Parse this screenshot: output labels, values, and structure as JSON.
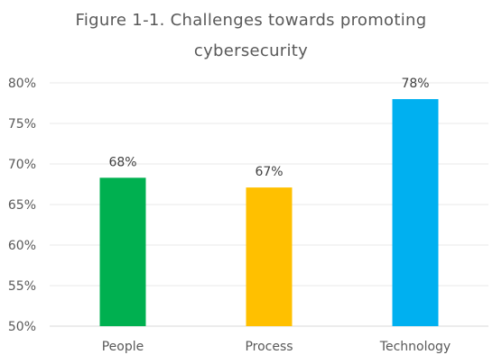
{
  "chart_data": {
    "type": "bar",
    "title_lines": [
      "Figure 1-1. Challenges towards promoting",
      "cybersecurity"
    ],
    "xlabel": "",
    "ylabel": "",
    "categories": [
      "People",
      "Process",
      "Technology"
    ],
    "values": [
      0.683,
      0.671,
      0.78
    ],
    "data_labels": [
      "68%",
      "67%",
      "78%"
    ],
    "bar_colors": [
      "#00b050",
      "#ffc000",
      "#00b0f0"
    ],
    "ylim": [
      0.5,
      0.8
    ],
    "yticks": [
      0.5,
      0.55,
      0.6,
      0.65,
      0.7,
      0.75,
      0.8
    ],
    "ytick_labels": [
      "50%",
      "55%",
      "60%",
      "65%",
      "70%",
      "75%",
      "80%"
    ],
    "grid": true,
    "legend": "none"
  }
}
